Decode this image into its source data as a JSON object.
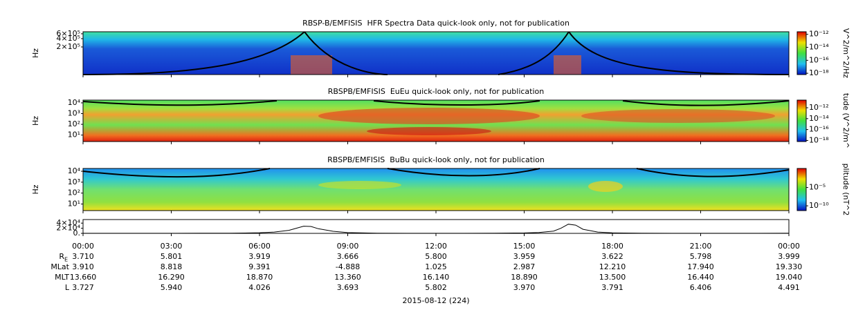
{
  "chart_data": [
    {
      "type": "spectrogram",
      "title": "RBSP-B/EMFISIS  HFR Spectra Data quick-look only, not for publication",
      "ylabel": "Hz",
      "log_y": true,
      "ylim": [
        20000,
        710000
      ],
      "yticks": [
        {
          "value": 600000,
          "label": "6×10⁵"
        },
        {
          "value": 400000,
          "label": "4×10⁵"
        },
        {
          "value": 200000,
          "label": "2×10⁵"
        }
      ],
      "colorbar": {
        "label": "V^2/m^2/Hz",
        "clim": [
          6.3e-19,
          2.5e-12
        ],
        "ticks": [
          {
            "value": 1e-12,
            "label": "10⁻¹²"
          },
          {
            "value": 1e-14,
            "label": "10⁻¹⁴"
          },
          {
            "value": 1e-16,
            "label": "10⁻¹⁶"
          },
          {
            "value": 1e-18,
            "label": "10⁻¹⁸"
          }
        ]
      }
    },
    {
      "type": "spectrogram",
      "title": "RBSPB/EMFISIS  EuEu quick-look only, not for publication",
      "ylabel": "Hz",
      "log_y": true,
      "ylim": [
        2.5,
        18000
      ],
      "yticks": [
        {
          "value": 10000,
          "label": "10⁴"
        },
        {
          "value": 1000,
          "label": "10³"
        },
        {
          "value": 100,
          "label": "10²"
        },
        {
          "value": 10,
          "label": "10¹"
        }
      ],
      "colorbar": {
        "label": "tude (V^2/m^",
        "clim": [
          6.3e-19,
          2.5e-11
        ],
        "ticks": [
          {
            "value": 1e-12,
            "label": "10⁻¹²"
          },
          {
            "value": 1e-14,
            "label": "10⁻¹⁴"
          },
          {
            "value": 1e-16,
            "label": "10⁻¹⁶"
          },
          {
            "value": 1e-18,
            "label": "10⁻¹⁸"
          }
        ]
      }
    },
    {
      "type": "spectrogram",
      "title": "RBSPB/EMFISIS  BuBu quick-look only, not for publication",
      "ylabel": "Hz",
      "log_y": true,
      "ylim": [
        2.5,
        18000
      ],
      "yticks": [
        {
          "value": 10000,
          "label": "10⁴"
        },
        {
          "value": 1000,
          "label": "10³"
        },
        {
          "value": 100,
          "label": "10²"
        },
        {
          "value": 10,
          "label": "10¹"
        }
      ],
      "colorbar": {
        "label": "plitude (nT^2",
        "clim": [
          5e-12,
          1.6
        ],
        "ticks": [
          {
            "value": 1e-05,
            "label": "10⁻⁵"
          },
          {
            "value": 1e-10,
            "label": "10⁻¹⁰"
          }
        ]
      }
    },
    {
      "type": "line",
      "color": "#000000",
      "ylim": [
        0,
        54000
      ],
      "yticks": [
        {
          "value": 40000,
          "label": "4×10⁴"
        },
        {
          "value": 20000,
          "label": "2×10⁴"
        },
        {
          "value": 0,
          "label": "0."
        }
      ],
      "xlim": [
        0,
        24
      ],
      "xticks": [
        {
          "value": 0,
          "label": "00:00"
        },
        {
          "value": 3,
          "label": "03:00"
        },
        {
          "value": 6,
          "label": "06:00"
        },
        {
          "value": 9,
          "label": "09:00"
        },
        {
          "value": 12,
          "label": "12:00"
        },
        {
          "value": 15,
          "label": "15:00"
        },
        {
          "value": 18,
          "label": "18:00"
        },
        {
          "value": 21,
          "label": "21:00"
        },
        {
          "value": 24,
          "label": "00:00"
        }
      ],
      "x": [
        0,
        1,
        2,
        3,
        4,
        5,
        5.5,
        6,
        6.5,
        7,
        7.25,
        7.5,
        7.75,
        8,
        8.5,
        9,
        10,
        11,
        12,
        13,
        14,
        15,
        15.5,
        16,
        16.25,
        16.5,
        16.75,
        17,
        17.5,
        18,
        19,
        20,
        21,
        22,
        23,
        24
      ],
      "values": [
        300,
        200,
        200,
        300,
        500,
        900,
        1400,
        2500,
        5000,
        12000,
        20000,
        28000,
        27000,
        18000,
        8000,
        3000,
        900,
        400,
        300,
        300,
        500,
        1500,
        3500,
        9000,
        20000,
        36000,
        32000,
        16000,
        5000,
        2000,
        700,
        400,
        300,
        300,
        400,
        600
      ]
    }
  ],
  "ephemeris": {
    "rows": [
      {
        "label": "R",
        "subscript": "E",
        "values": [
          "3.710",
          "5.801",
          "3.919",
          "3.666",
          "5.800",
          "3.959",
          "3.622",
          "5.798",
          "3.999"
        ]
      },
      {
        "label": "MLat",
        "values": [
          "3.910",
          "8.818",
          "9.391",
          "-4.888",
          "1.025",
          "2.987",
          "12.210",
          "17.940",
          "19.330"
        ]
      },
      {
        "label": "MLT",
        "values": [
          "13.660",
          "16.290",
          "18.870",
          "13.360",
          "16.140",
          "18.890",
          "13.500",
          "16.440",
          "19.040"
        ]
      },
      {
        "label": "L",
        "values": [
          "3.727",
          "5.940",
          "4.026",
          "3.693",
          "5.802",
          "3.970",
          "3.791",
          "6.406",
          "4.491"
        ]
      }
    ]
  },
  "date": "2015-08-12 (224)"
}
